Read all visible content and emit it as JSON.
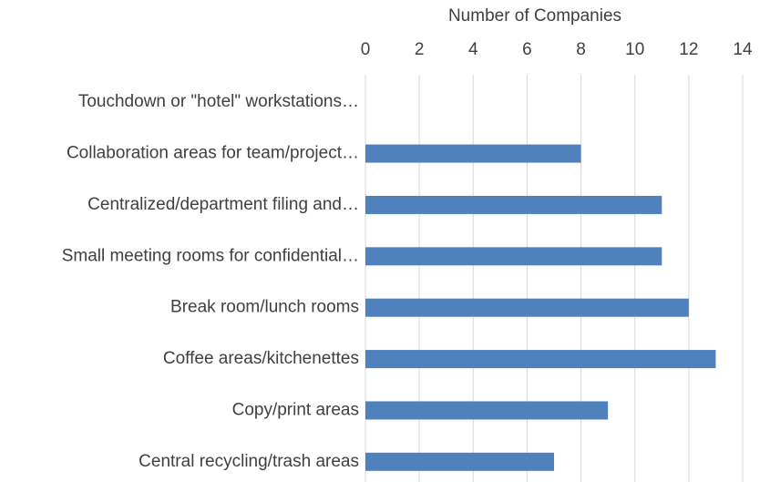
{
  "chart_data": {
    "type": "bar",
    "orientation": "horizontal",
    "x_label": "Number of Companies",
    "categories": [
      "Touchdown or \"hotel\" workstations…",
      "Collaboration areas for team/project…",
      "Centralized/department filing and…",
      "Small meeting rooms for confidential…",
      "Break room/lunch rooms",
      "Coffee areas/kitchenettes",
      "Copy/print areas",
      "Central recycling/trash areas"
    ],
    "values": [
      0,
      8,
      11,
      11,
      12,
      13,
      9,
      7
    ],
    "color": "#4f81bd",
    "xlim": [
      0,
      14
    ],
    "xticks": [
      0,
      2,
      4,
      6,
      8,
      10,
      12,
      14
    ],
    "grid": true
  }
}
